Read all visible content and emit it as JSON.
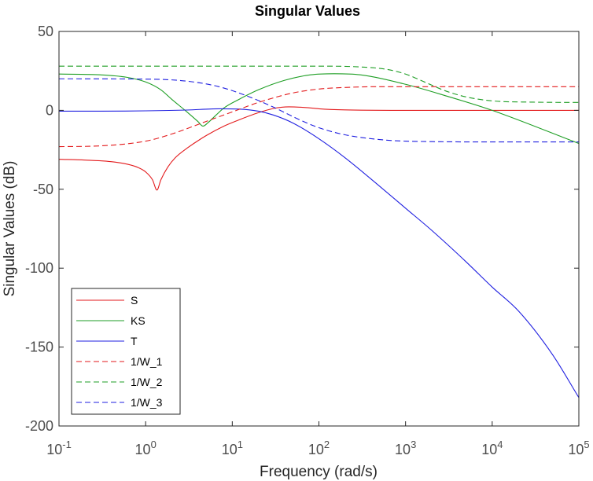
{
  "chart_data": {
    "type": "line",
    "title": "Singular Values",
    "xlabel": "Frequency (rad/s)",
    "ylabel": "Singular Values (dB)",
    "xscale": "log",
    "xlim": [
      0.1,
      100000
    ],
    "ylim": [
      -200,
      50
    ],
    "xticks": [
      0.1,
      1,
      10,
      100,
      1000,
      10000,
      100000
    ],
    "xtick_labels": [
      {
        "base": "10",
        "exp": "-1"
      },
      {
        "base": "10",
        "exp": "0"
      },
      {
        "base": "10",
        "exp": "1"
      },
      {
        "base": "10",
        "exp": "2"
      },
      {
        "base": "10",
        "exp": "3"
      },
      {
        "base": "10",
        "exp": "4"
      },
      {
        "base": "10",
        "exp": "5"
      }
    ],
    "yticks": [
      -200,
      -150,
      -100,
      -50,
      0,
      50
    ],
    "ytick_labels": [
      "-200",
      "-150",
      "-100",
      "-50",
      "0",
      "50"
    ],
    "grid": false,
    "legend_position": "bottom-left",
    "series": [
      {
        "name": "S",
        "color": "#e31a1c",
        "dash": "solid",
        "x": [
          0.1,
          0.2,
          0.4,
          0.6,
          0.8,
          1.0,
          1.2,
          1.35,
          1.5,
          1.8,
          2.2,
          3,
          5,
          8,
          12,
          20,
          30,
          45,
          70,
          100,
          200,
          1000,
          10000,
          100000
        ],
        "y": [
          -31,
          -31.5,
          -32.5,
          -34,
          -36,
          -39,
          -44,
          -50.5,
          -44,
          -36,
          -30,
          -24,
          -16,
          -10,
          -6,
          -1.5,
          1.2,
          2.2,
          1.8,
          1.0,
          0.3,
          0,
          0,
          0
        ]
      },
      {
        "name": "KS",
        "color": "#1e9e24",
        "dash": "solid",
        "x": [
          0.1,
          0.3,
          0.6,
          1.0,
          1.5,
          2.0,
          3.0,
          4.0,
          4.6,
          5.2,
          6.5,
          8,
          12,
          20,
          40,
          80,
          150,
          300,
          1000,
          3000,
          10000,
          100000
        ],
        "y": [
          23,
          22.5,
          21,
          18,
          13,
          7,
          -1,
          -7,
          -10,
          -8,
          -3,
          1.5,
          7,
          13,
          19,
          22.5,
          23.2,
          22.5,
          16.5,
          9,
          0,
          -21
        ]
      },
      {
        "name": "T",
        "color": "#1f1fe0",
        "dash": "solid",
        "x": [
          0.1,
          0.3,
          1,
          3,
          7,
          12,
          20,
          30,
          50,
          100,
          200,
          500,
          1000,
          2000,
          5000,
          10000,
          20000,
          50000,
          100000
        ],
        "y": [
          -0.5,
          -0.5,
          -0.3,
          0.2,
          1.0,
          0.8,
          -0.5,
          -3,
          -8,
          -18,
          -30,
          -48,
          -62,
          -76,
          -96,
          -112,
          -127,
          -155,
          -182
        ]
      },
      {
        "name": "1/W_1",
        "color": "#e31a1c",
        "dash": "dashed",
        "x": [
          0.1,
          0.3,
          1,
          2,
          5,
          10,
          20,
          50,
          100,
          200,
          500,
          1000,
          10000,
          100000
        ],
        "y": [
          -23,
          -22.5,
          -19.5,
          -15,
          -7,
          -1,
          5,
          11,
          13.5,
          14.5,
          15,
          15,
          15,
          15
        ]
      },
      {
        "name": "1/W_2",
        "color": "#1e9e24",
        "dash": "dashed",
        "x": [
          0.1,
          10,
          100,
          300,
          600,
          1000,
          1500,
          2000,
          3000,
          5000,
          10000,
          30000,
          100000
        ],
        "y": [
          28,
          28,
          28,
          27.5,
          26,
          23,
          19,
          16,
          12,
          8.5,
          6,
          5.2,
          5
        ]
      },
      {
        "name": "1/W_3",
        "color": "#1f1fe0",
        "dash": "dashed",
        "x": [
          0.1,
          1,
          3,
          7,
          15,
          30,
          60,
          100,
          200,
          500,
          1000,
          10000,
          100000
        ],
        "y": [
          20,
          19.8,
          18.5,
          15,
          9,
          2,
          -6,
          -11,
          -15.5,
          -18.5,
          -19.5,
          -20,
          -20
        ]
      }
    ]
  }
}
